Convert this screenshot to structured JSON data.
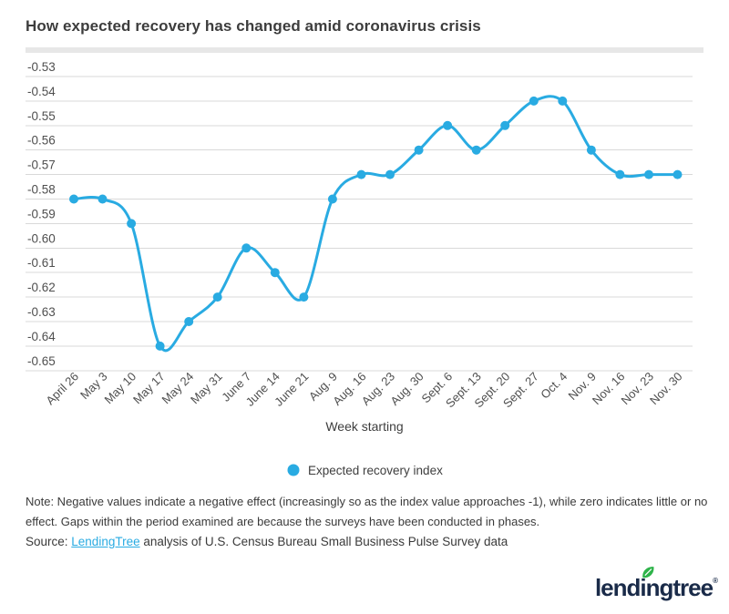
{
  "header": {
    "title": "How expected recovery has changed amid coronavirus crisis"
  },
  "chart_data": {
    "type": "line",
    "title": "How expected recovery has changed amid coronavirus crisis",
    "categories": [
      "April 26",
      "May 3",
      "May 10",
      "May 17",
      "May 24",
      "May 31",
      "June 7",
      "June 14",
      "June 21",
      "Aug. 9",
      "Aug. 16",
      "Aug. 23",
      "Aug. 30",
      "Sept. 6",
      "Sept. 13",
      "Sept. 20",
      "Sept. 27",
      "Oct. 4",
      "Nov. 9",
      "Nov. 16",
      "Nov. 23",
      "Nov. 30"
    ],
    "series": [
      {
        "name": "Expected recovery index",
        "values": [
          -0.58,
          -0.58,
          -0.59,
          -0.64,
          -0.63,
          -0.62,
          -0.6,
          -0.61,
          -0.62,
          -0.58,
          -0.57,
          -0.57,
          -0.56,
          -0.55,
          -0.56,
          -0.55,
          -0.54,
          -0.54,
          -0.56,
          -0.57,
          -0.57,
          -0.57
        ]
      }
    ],
    "xlabel": "Week starting",
    "ylabel": "",
    "ylim": [
      -0.65,
      -0.53
    ],
    "ytick_step": 0.01,
    "grid": true,
    "legend_position": "bottom",
    "line_color": "#29abe2",
    "grid_color": "#d9d9d9",
    "tick_label_color": "#4f4f4f",
    "axis_label_color": "#3e3e3e"
  },
  "footer": {
    "note": "Note: Negative values indicate a negative effect (increasingly so as the index value approaches -1), while zero indicates little or no effect. Gaps within the period examined are because the surveys have been conducted in phases.",
    "source_prefix": "Source: ",
    "source_link": "LendingTree",
    "source_suffix": " analysis of U.S. Census Bureau Small Business Pulse Survey data"
  },
  "logo": {
    "wordmark": "lendingtree",
    "registered": "®",
    "navy": "#1a2b49",
    "green": "#2eb34a"
  }
}
